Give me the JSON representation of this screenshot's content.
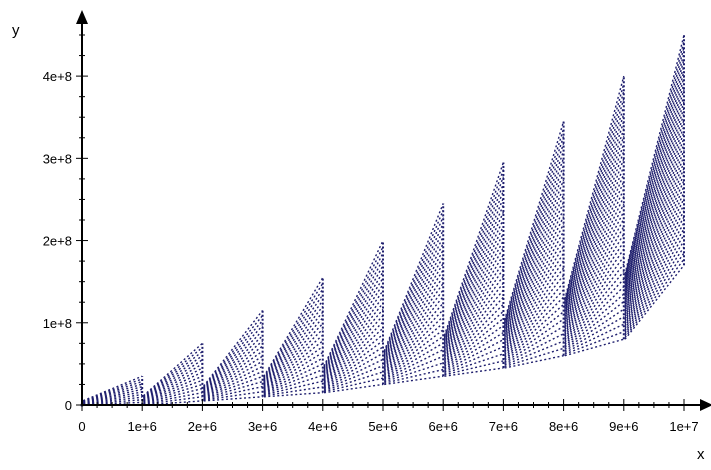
{
  "chart_data": {
    "type": "scatter",
    "title": "",
    "xlabel": "x",
    "ylabel": "y",
    "xlim": [
      0,
      10000000
    ],
    "ylim": [
      0,
      450000000
    ],
    "x_ticks": [
      0,
      1000000,
      2000000,
      3000000,
      4000000,
      5000000,
      6000000,
      7000000,
      8000000,
      9000000,
      10000000
    ],
    "x_tick_labels": [
      "0",
      "1e+6",
      "2e+6",
      "3e+6",
      "4e+6",
      "5e+6",
      "6e+6",
      "7e+6",
      "8e+6",
      "9e+6",
      "1e+7"
    ],
    "y_ticks": [
      0,
      100000000,
      200000000,
      300000000,
      400000000
    ],
    "y_tick_labels": [
      "0",
      "1e+8",
      "2e+8",
      "3e+8",
      "4e+8"
    ],
    "grid": false,
    "legend": "none",
    "series": [
      {
        "color": "#1f1f6e",
        "description_of_trend": "sawtooth growth",
        "points": [
          [
            0,
            0
          ],
          [
            500000,
            8000000
          ],
          [
            1000000,
            35000000
          ],
          [
            1000000,
            0
          ],
          [
            1500000,
            30000000
          ],
          [
            2000000,
            75000000
          ],
          [
            2000000,
            5000000
          ],
          [
            2500000,
            55000000
          ],
          [
            3000000,
            115000000
          ],
          [
            3000000,
            10000000
          ],
          [
            3500000,
            80000000
          ],
          [
            4000000,
            155000000
          ],
          [
            4000000,
            15000000
          ],
          [
            4500000,
            110000000
          ],
          [
            5000000,
            200000000
          ],
          [
            5000000,
            25000000
          ],
          [
            5500000,
            140000000
          ],
          [
            6000000,
            245000000
          ],
          [
            6000000,
            35000000
          ],
          [
            6500000,
            170000000
          ],
          [
            7000000,
            295000000
          ],
          [
            7000000,
            45000000
          ],
          [
            7500000,
            200000000
          ],
          [
            8000000,
            345000000
          ],
          [
            8000000,
            60000000
          ],
          [
            8500000,
            230000000
          ],
          [
            9000000,
            400000000
          ],
          [
            9000000,
            80000000
          ],
          [
            9500000,
            260000000
          ],
          [
            10000000,
            450000000
          ],
          [
            10000000,
            170000000
          ]
        ]
      }
    ]
  }
}
